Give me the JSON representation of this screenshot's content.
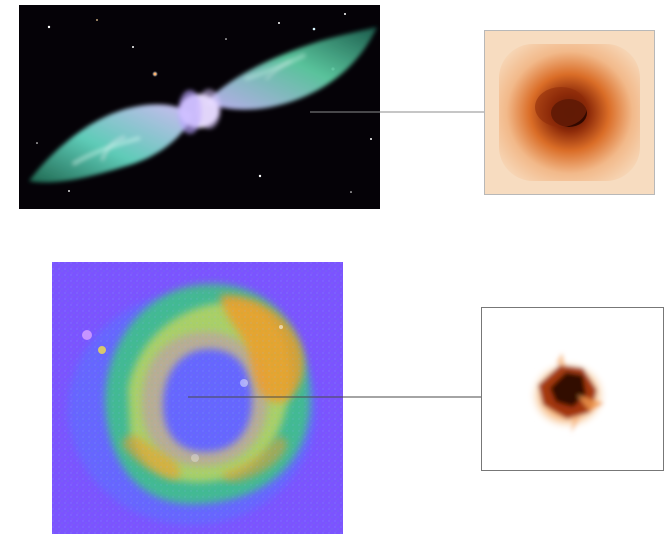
{
  "figure": {
    "panels": [
      {
        "icon": "nebula-photograph"
      },
      {
        "icon": "nebula-core-zoom"
      },
      {
        "icon": "ring-intensity-map"
      },
      {
        "icon": "ring-source-zoom"
      }
    ]
  },
  "colors": {
    "space_background": "#050207",
    "nebula_cyan": "#63d6c1",
    "zoom_orange": "#f2b98a",
    "zoom_core": "#2d0700",
    "ring_purple": "#7b54ff",
    "ring_green": "#34d96c",
    "ring_yellow": "#f4e04a",
    "ring_orange": "#f29b28",
    "connector_line": "#8c8c8c"
  }
}
